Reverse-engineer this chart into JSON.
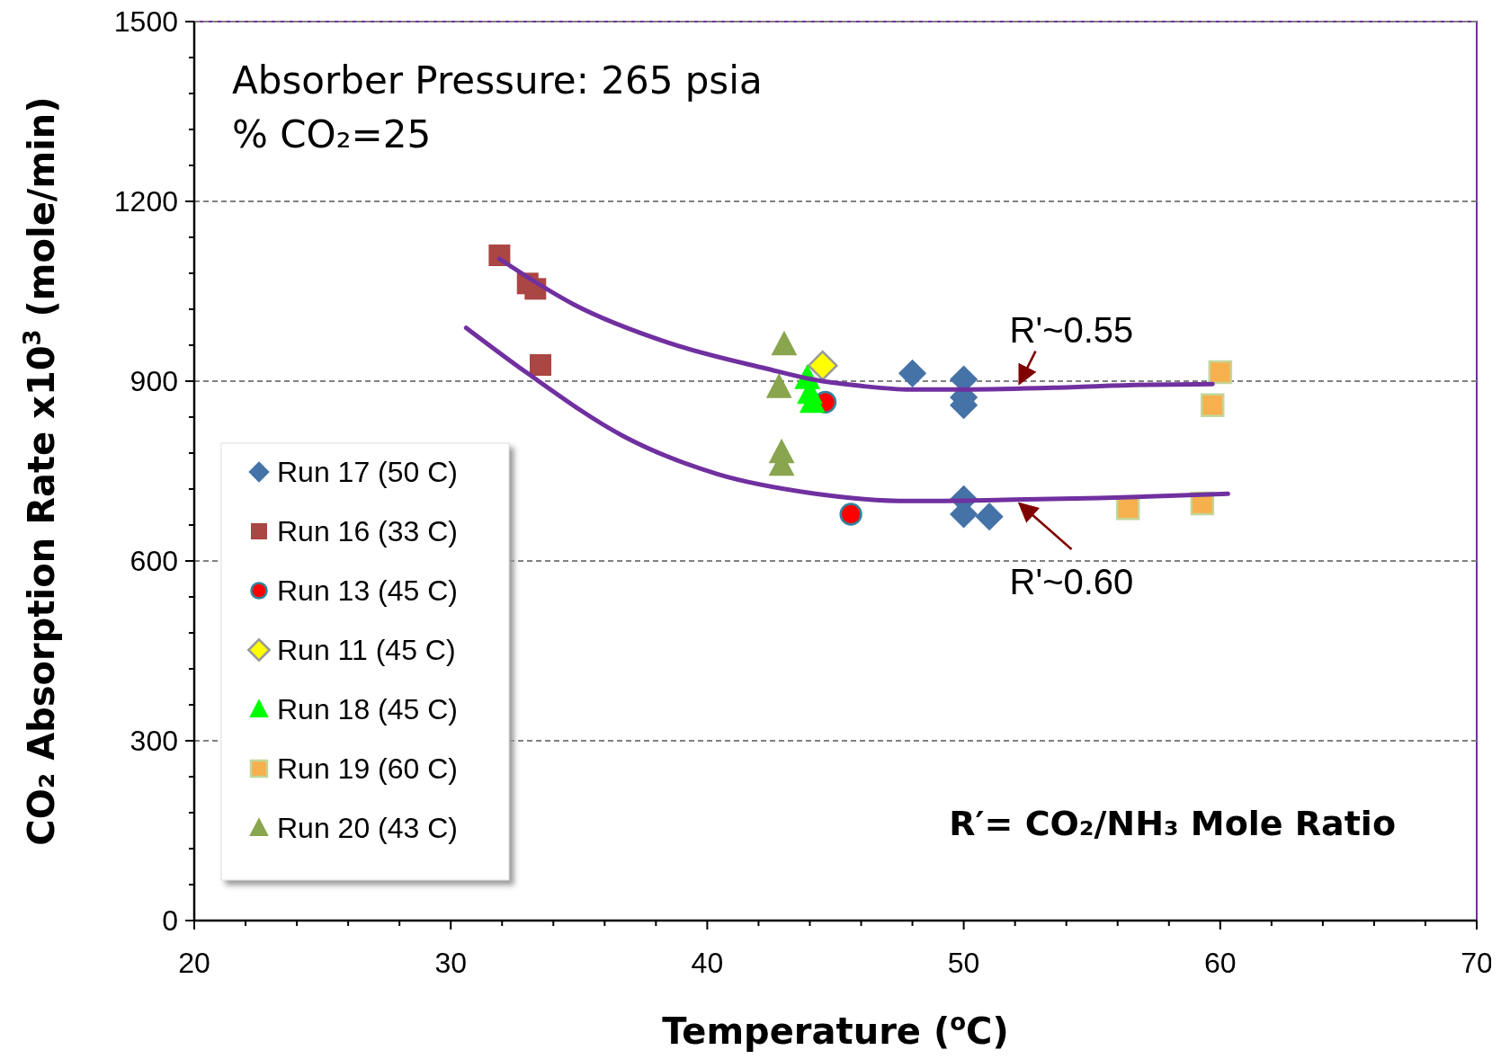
{
  "chart_data": {
    "type": "scatter",
    "xlabel": "Temperature ($^{o}$C)",
    "ylabel": "CO₂ Absorption Rate x10$^{3}$ (mole/min)",
    "xlim": [
      20,
      70
    ],
    "ylim": [
      0,
      1500
    ],
    "xticks": [
      20,
      {
        "value": 22,
        "label": null
      },
      {
        "value": 24,
        "label": null
      },
      {
        "value": 26,
        "label": null
      },
      {
        "value": 28,
        "label": null
      },
      30,
      {
        "value": 32,
        "label": null
      },
      {
        "value": 34,
        "label": null
      },
      {
        "value": 36,
        "label": null
      },
      {
        "value": 38,
        "label": null
      },
      40,
      {
        "value": 42,
        "label": null
      },
      {
        "value": 44,
        "label": null
      },
      {
        "value": 46,
        "label": null
      },
      {
        "value": 48,
        "label": null
      },
      50,
      {
        "value": 52,
        "label": null
      },
      {
        "value": 54,
        "label": null
      },
      {
        "value": 56,
        "label": null
      },
      {
        "value": 58,
        "label": null
      },
      60,
      {
        "value": 62,
        "label": null
      },
      {
        "value": 64,
        "label": null
      },
      {
        "value": 66,
        "label": null
      },
      {
        "value": 68,
        "label": null
      },
      70
    ],
    "yticks": [
      0,
      {
        "value": 60,
        "label": null
      },
      {
        "value": 120,
        "label": null
      },
      {
        "value": 180,
        "label": null
      },
      {
        "value": 240,
        "label": null
      },
      300,
      {
        "value": 360,
        "label": null
      },
      {
        "value": 420,
        "label": null
      },
      {
        "value": 480,
        "label": null
      },
      {
        "value": 540,
        "label": null
      },
      600,
      {
        "value": 660,
        "label": null
      },
      {
        "value": 720,
        "label": null
      },
      {
        "value": 780,
        "label": null
      },
      {
        "value": 840,
        "label": null
      },
      900,
      {
        "value": 960,
        "label": null
      },
      {
        "value": 1020,
        "label": null
      },
      {
        "value": 1080,
        "label": null
      },
      {
        "value": 1140,
        "label": null
      },
      1200,
      {
        "value": 1260,
        "label": null
      },
      {
        "value": 1320,
        "label": null
      },
      {
        "value": 1380,
        "label": null
      },
      {
        "value": 1440,
        "label": null
      },
      1500
    ],
    "grid": "y",
    "legend": "bottom left",
    "series": [
      {
        "name": "Run 17 (50 C)",
        "marker": "diamond",
        "color": "#4572a7",
        "x": [
          48.0,
          50.0,
          50.0,
          50.0,
          50.0,
          50.0,
          51.0
        ],
        "values": [
          913,
          903,
          873,
          860,
          703,
          678,
          674
        ]
      },
      {
        "name": "Run 16 (33 C)",
        "marker": "square",
        "color": "#aa4643",
        "x": [
          31.9,
          33.0,
          33.3,
          33.5
        ],
        "values": [
          1110,
          1063,
          1054,
          927
        ]
      },
      {
        "name": "Run 13 (45 C)",
        "marker": "circle",
        "color": "#ff0000",
        "x": [
          44.6,
          45.6
        ],
        "values": [
          865,
          678
        ]
      },
      {
        "name": "Run 11 (45 C)",
        "marker": "diamond",
        "color": "#ffff00",
        "x": [
          44.5
        ],
        "values": [
          926
        ]
      },
      {
        "name": "Run 18 (45 C)",
        "marker": "triangle",
        "color": "#00ff00",
        "x": [
          43.9,
          44.0,
          44.1
        ],
        "values": [
          905,
          880,
          865
        ]
      },
      {
        "name": "Run 19 (60 C)",
        "marker": "square",
        "color": "#f6b04e",
        "x": [
          60.0,
          59.7,
          56.4,
          59.3
        ],
        "values": [
          915,
          860,
          688,
          696
        ]
      },
      {
        "name": "Run 20 (43 C)",
        "marker": "triangle",
        "color": "#89a54e",
        "x": [
          43.0,
          42.8,
          42.9,
          42.9
        ],
        "values": [
          961,
          890,
          781,
          760
        ]
      },
      {
        "type": "line",
        "color": "#7030a0",
        "x": [
          31.9,
          34.8,
          38.5,
          42.3,
          44.1,
          46.0,
          47.9,
          49.7,
          53.5,
          57.2,
          59.7
        ],
        "values": [
          1104,
          1028,
          964,
          921,
          903,
          892,
          886,
          886,
          889,
          894,
          895
        ]
      },
      {
        "type": "line",
        "color": "#7030a0",
        "x": [
          30.6,
          33.0,
          36.7,
          40.4,
          44.1,
          47.9,
          51.6,
          55.3,
          60.3
        ],
        "values": [
          989,
          913,
          809,
          745,
          713,
          700,
          702,
          705,
          712
        ]
      }
    ],
    "annotations": [
      "Absorber Pressure: 265 psia",
      "% CO₂=25",
      "R′= CO₂/NH₃ Mole Ratio",
      {
        "text": "R'~0.55",
        "x": 52.1,
        "y": 890
      },
      {
        "text": "R'~0.60",
        "x": 52.1,
        "y": 702
      }
    ]
  }
}
